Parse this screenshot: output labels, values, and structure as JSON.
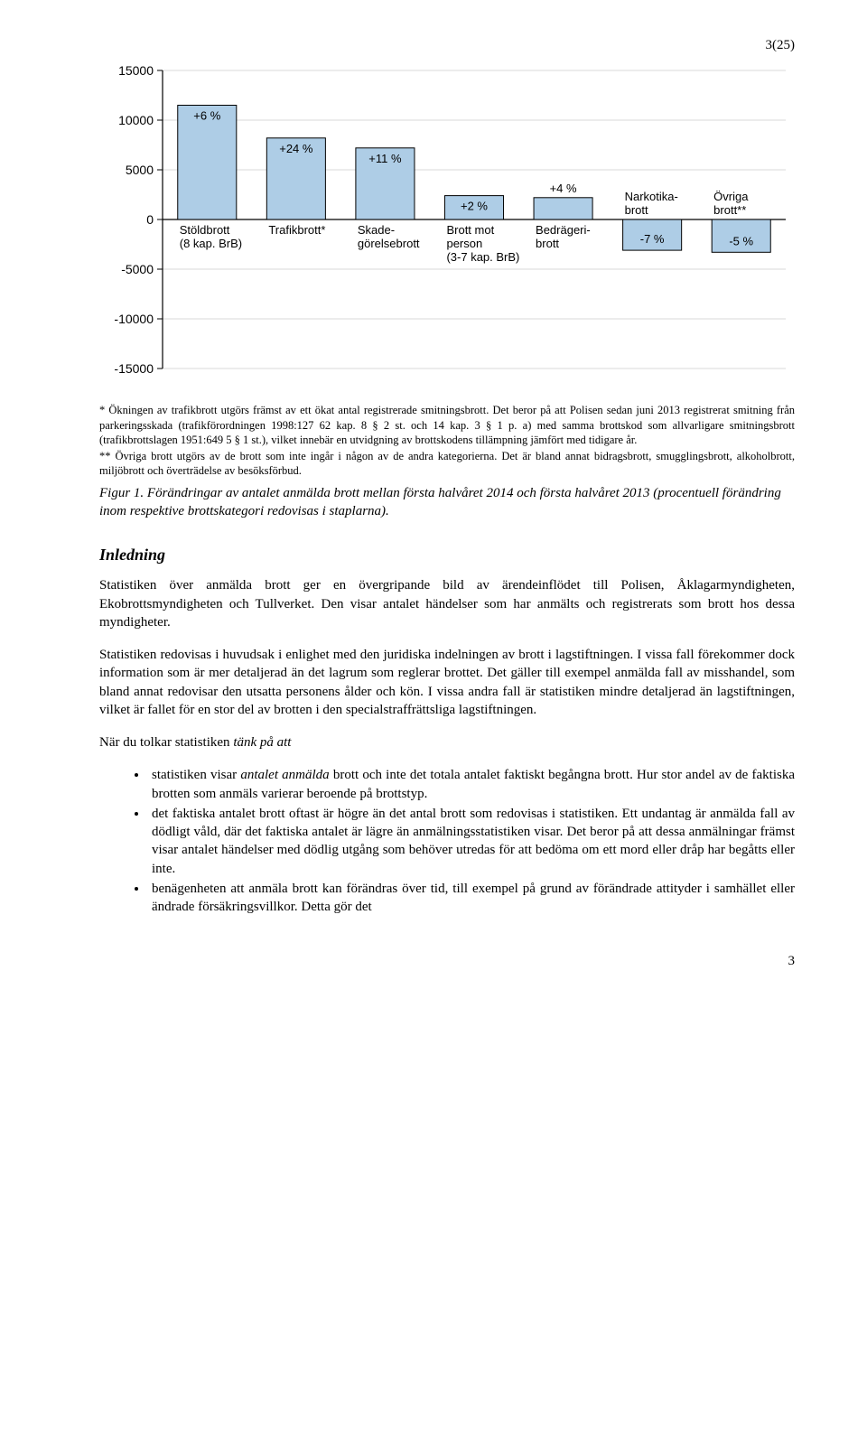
{
  "page_number_top": "3(25)",
  "page_number_bottom": "3",
  "chart": {
    "type": "bar",
    "bar_color": "#aecde6",
    "bar_border_color": "#000000",
    "grid_color": "#d9d9d9",
    "axis_color": "#000000",
    "background_color": "#ffffff",
    "label_fontsize": 13,
    "tick_fontsize": 14,
    "ylim": [
      -15000,
      15000
    ],
    "ytick_step": 5000,
    "yticks": [
      -15000,
      -10000,
      -5000,
      0,
      5000,
      10000,
      15000
    ],
    "series": [
      {
        "label_lines": [
          "Stöldbrott",
          "(8 kap. BrB)"
        ],
        "value": 11500,
        "pct": "+6 %"
      },
      {
        "label_lines": [
          "Trafikbrott*"
        ],
        "value": 8200,
        "pct": "+24 %"
      },
      {
        "label_lines": [
          "Skade-",
          "görelsebrott"
        ],
        "value": 7200,
        "pct": "+11 %"
      },
      {
        "label_lines": [
          "Brott mot",
          "person",
          "(3-7 kap. BrB)"
        ],
        "value": 2400,
        "pct": "+2 %"
      },
      {
        "label_lines": [
          "Bedrägeri-",
          "brott"
        ],
        "value": 2200,
        "pct": "+4 %"
      },
      {
        "label_lines": [
          "Narkotika-",
          "brott"
        ],
        "value": -3100,
        "pct": "-7 %"
      },
      {
        "label_lines": [
          "Övriga",
          "brott**"
        ],
        "value": -3300,
        "pct": "-5 %"
      }
    ]
  },
  "footnote1": "* Ökningen av trafikbrott utgörs främst av ett ökat antal registrerade smitningsbrott. Det beror på att Polisen sedan juni 2013 registrerat smitning från parkeringsskada (trafikförordningen 1998:127 62 kap. 8 § 2 st. och 14 kap. 3 § 1 p. a) med samma brottskod som allvarligare smitningsbrott (trafikbrottslagen 1951:649 5 § 1 st.), vilket innebär en utvidgning av brottskodens tillämpning jämfört med tidigare år.",
  "footnote2": "** Övriga brott utgörs av de brott som inte ingår i någon av de andra kategorierna. Det är bland annat bidragsbrott, smugglingsbrott, alkoholbrott, miljöbrott och överträdelse av besöksförbud.",
  "caption": "Figur 1. Förändringar av antalet anmälda brott mellan första halvåret 2014 och första halvåret 2013 (procentuell förändring inom respektive brottskategori redovisas i staplarna).",
  "heading": "Inledning",
  "para1": "Statistiken över anmälda brott ger en övergripande bild av ärendeinflödet till Polisen, Åklagarmyndigheten, Ekobrottsmyndigheten och Tullverket. Den visar antalet händelser som har anmälts och registrerats som brott hos dessa myndigheter.",
  "para2": "Statistiken redovisas i huvudsak i enlighet med den juridiska indelningen av brott i lagstiftningen. I vissa fall förekommer dock information som är mer detaljerad än det lagrum som reglerar brottet. Det gäller till exempel anmälda fall av misshandel, som bland annat redovisar den utsatta personens ålder och kön. I vissa andra fall är statistiken mindre detaljerad än lagstiftningen, vilket är fallet för en stor del av brotten i den specialstraffrättsliga lagstiftningen.",
  "para3_prefix": "När du tolkar statistiken ",
  "para3_em": "tänk på att",
  "bullets": [
    {
      "pre": "statistiken visar ",
      "em": "antalet anmälda",
      "post": " brott och inte det totala antalet faktiskt begångna brott. Hur stor andel av de faktiska brotten som anmäls varierar beroende på brottstyp."
    },
    {
      "pre": "det faktiska antalet brott oftast är högre än det antal brott som redovisas i statistiken. Ett undantag är anmälda fall av dödligt våld, där det faktiska antalet är lägre än anmälningsstatistiken visar. Det beror på att dessa anmälningar främst visar antalet händelser med dödlig utgång som behöver utredas för att bedöma om ett mord eller dråp har begåtts eller inte.",
      "em": "",
      "post": ""
    },
    {
      "pre": "benägenheten att anmäla brott kan förändras över tid, till exempel på grund av förändrade attityder i samhället eller ändrade försäkringsvillkor. Detta gör det",
      "em": "",
      "post": ""
    }
  ]
}
